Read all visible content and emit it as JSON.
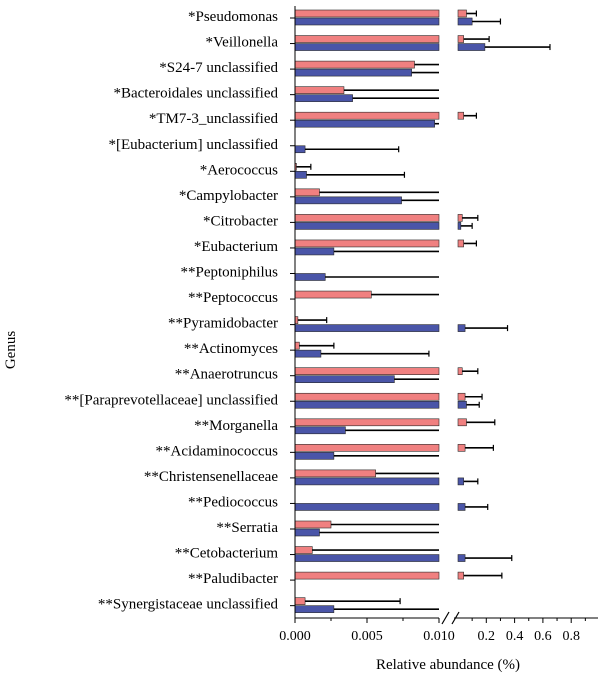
{
  "chart_data": {
    "type": "bar",
    "orientation": "horizontal",
    "ylabel": "Genus",
    "xlabel": "Relative abundance (%)",
    "axis_break": true,
    "left_panel": {
      "xlim": [
        0,
        0.01
      ],
      "ticks": [
        "0.000",
        "0.005",
        "0.010"
      ]
    },
    "right_panel": {
      "xlim": [
        0,
        1.0
      ],
      "ticks": [
        "0.2",
        "0.4",
        "0.6",
        "0.8"
      ]
    },
    "colors": {
      "series_a": "#f08080",
      "series_b": "#4a55a8"
    },
    "categories": [
      {
        "label": "*Pseudomonas",
        "a": 0.06,
        "a_err": 0.07,
        "b": 0.1,
        "b_err": 0.2
      },
      {
        "label": "*Veillonella",
        "a": 0.04,
        "a_err": 0.18,
        "b": 0.19,
        "b_err": 0.46
      },
      {
        "label": "*S24-7 unclassified",
        "a": 0.0083,
        "a_err": 0.03,
        "b": 0.0081,
        "b_err": 0.03
      },
      {
        "label": "*Bacteroidales unclassified",
        "a": 0.0034,
        "a_err": 0.02,
        "b": 0.004,
        "b_err": 0.02
      },
      {
        "label": "*TM7-3_unclassified",
        "a": 0.04,
        "a_err": 0.09,
        "b": 0.0097,
        "b_err": 0.03
      },
      {
        "label": "*[Eubacterium] unclassified",
        "a": 0,
        "a_err": 0,
        "b": 0.0007,
        "b_err": 0.0065
      },
      {
        "label": "*Aerococcus",
        "a": 0.0001,
        "a_err": 0.001,
        "b": 0.0008,
        "b_err": 0.0068
      },
      {
        "label": "*Campylobacter",
        "a": 0.0017,
        "a_err": 0.01,
        "b": 0.0074,
        "b_err": 0.03
      },
      {
        "label": "*Citrobacter",
        "a": 0.03,
        "a_err": 0.11,
        "b": 0.02,
        "b_err": 0.08
      },
      {
        "label": "*Eubacterium",
        "a": 0.04,
        "a_err": 0.09,
        "b": 0.0027,
        "b_err": 0.01
      },
      {
        "label": "**Peptoniphilus",
        "a": 0,
        "a_err": 0,
        "b": 0.0021,
        "b_err": 0.01
      },
      {
        "label": "**Peptococcus",
        "a": 0.0053,
        "a_err": 0.03,
        "b": 0,
        "b_err": 0
      },
      {
        "label": "**Pyramidobacter",
        "a": 0.0002,
        "a_err": 0.002,
        "b": 0.05,
        "b_err": 0.3
      },
      {
        "label": "**Actinomyces",
        "a": 0.0003,
        "a_err": 0.0024,
        "b": 0.0018,
        "b_err": 0.0075
      },
      {
        "label": "**Anaerotruncus",
        "a": 0.03,
        "a_err": 0.11,
        "b": 0.0069,
        "b_err": 0.03
      },
      {
        "label": "**[Paraprevotellaceae] unclassified",
        "a": 0.05,
        "a_err": 0.12,
        "b": 0.06,
        "b_err": 0.09
      },
      {
        "label": "**Morganella",
        "a": 0.06,
        "a_err": 0.2,
        "b": 0.0035,
        "b_err": 0.01
      },
      {
        "label": "**Acidaminococcus",
        "a": 0.05,
        "a_err": 0.2,
        "b": 0.0027,
        "b_err": 0.01
      },
      {
        "label": "**Christensenellaceae",
        "a": 0.0056,
        "a_err": 0.02,
        "b": 0.04,
        "b_err": 0.1
      },
      {
        "label": "**Pediococcus",
        "a": 0,
        "a_err": 0,
        "b": 0.05,
        "b_err": 0.16
      },
      {
        "label": "**Serratia",
        "a": 0.0025,
        "a_err": 0.01,
        "b": 0.0017,
        "b_err": 0.01
      },
      {
        "label": "**Cetobacterium",
        "a": 0.0012,
        "a_err": 0.0093,
        "b": 0.05,
        "b_err": 0.33
      },
      {
        "label": "**Paludibacter",
        "a": 0.04,
        "a_err": 0.27,
        "b": 0,
        "b_err": 0
      },
      {
        "label": "**Synergistaceae unclassified",
        "a": 0.0007,
        "a_err": 0.0066,
        "b": 0.0027,
        "b_err": 0.03
      }
    ]
  }
}
